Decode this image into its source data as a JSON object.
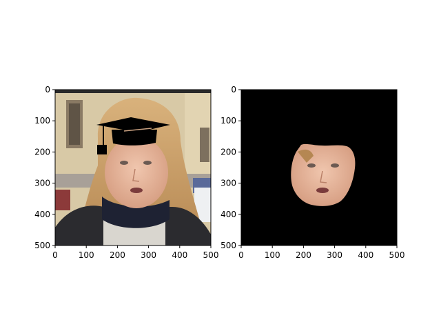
{
  "chart_data": [
    {
      "type": "image",
      "image_description": "photo",
      "xlim": [
        0,
        500
      ],
      "ylim": [
        500,
        0
      ],
      "x_ticks": [
        "0",
        "100",
        "200",
        "300",
        "400",
        "500"
      ],
      "y_ticks": [
        "0",
        "100",
        "200",
        "300",
        "400",
        "500"
      ],
      "x_tick_values": [
        0,
        100,
        200,
        300,
        400,
        500
      ],
      "y_tick_values": [
        0,
        100,
        200,
        300,
        400,
        500
      ],
      "title": "",
      "xlabel": "",
      "ylabel": ""
    },
    {
      "type": "image",
      "image_description": "segmentation mask",
      "xlim": [
        0,
        500
      ],
      "ylim": [
        500,
        0
      ],
      "x_ticks": [
        "0",
        "100",
        "200",
        "300",
        "400",
        "500"
      ],
      "y_ticks": [
        "0",
        "100",
        "200",
        "300",
        "400",
        "500"
      ],
      "x_tick_values": [
        0,
        100,
        200,
        300,
        400,
        500
      ],
      "y_tick_values": [
        0,
        100,
        200,
        300,
        400,
        500
      ],
      "title": "",
      "xlabel": "",
      "ylabel": ""
    }
  ],
  "colors": {
    "building": "#d8c9a6",
    "hair": "#c9a06a",
    "skin": "#e9b9a0",
    "scarf": "#1e2233",
    "mask_background": "#000000",
    "hat": "#000000"
  }
}
